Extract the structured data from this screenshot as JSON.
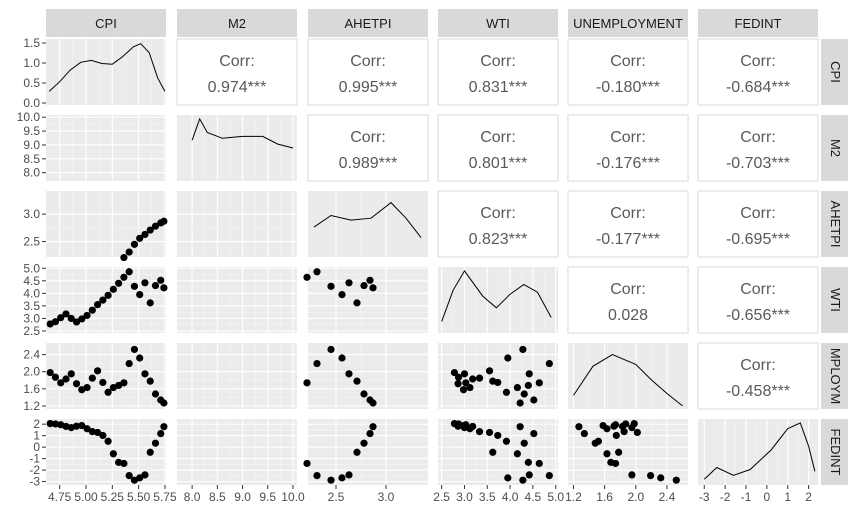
{
  "chart_data": {
    "type": "scatter",
    "variables": [
      "CPI",
      "M2",
      "AHETPI",
      "WTI",
      "UNEMPLOYMENT",
      "FEDINT"
    ],
    "row_strip_labels": [
      "CPI",
      "M2",
      "AHETPI",
      "WTI",
      "MPLOYM",
      "FEDINT"
    ],
    "corr_heading": "Corr:",
    "correlations": [
      {
        "row": 0,
        "col": 1,
        "label": "0.974***"
      },
      {
        "row": 0,
        "col": 2,
        "label": "0.995***"
      },
      {
        "row": 0,
        "col": 3,
        "label": "0.831***"
      },
      {
        "row": 0,
        "col": 4,
        "label": "-0.180***"
      },
      {
        "row": 0,
        "col": 5,
        "label": "-0.684***"
      },
      {
        "row": 1,
        "col": 2,
        "label": "0.989***"
      },
      {
        "row": 1,
        "col": 3,
        "label": "0.801***"
      },
      {
        "row": 1,
        "col": 4,
        "label": "-0.176***"
      },
      {
        "row": 1,
        "col": 5,
        "label": "-0.703***"
      },
      {
        "row": 2,
        "col": 3,
        "label": "0.823***"
      },
      {
        "row": 2,
        "col": 4,
        "label": "-0.177***"
      },
      {
        "row": 2,
        "col": 5,
        "label": "-0.695***"
      },
      {
        "row": 3,
        "col": 4,
        "label": "0.028"
      },
      {
        "row": 3,
        "col": 5,
        "label": "-0.656***"
      },
      {
        "row": 4,
        "col": 5,
        "label": "-0.458***"
      }
    ],
    "x_ticks": [
      [
        "4.75",
        "5.00",
        "5.25",
        "5.50",
        "5.75"
      ],
      [
        "8.0",
        "8.5",
        "9.0",
        "9.5",
        "10.0"
      ],
      [
        "2.5",
        "3.0"
      ],
      [
        "2.5",
        "3.0",
        "3.5",
        "4.0",
        "4.5",
        "5.0"
      ],
      [
        "1.2",
        "1.6",
        "2.0",
        "2.4"
      ],
      [
        "-3",
        "-2",
        "-1",
        "0",
        "1",
        "2"
      ]
    ],
    "y_ticks": [
      [
        "0.0",
        "0.5",
        "1.0",
        "1.5"
      ],
      [
        "8.0",
        "8.5",
        "9.0",
        "9.5",
        "10.0"
      ],
      [
        "2.5",
        "3.0"
      ],
      [
        "2.5",
        "3.0",
        "3.5",
        "4.0",
        "4.5",
        "5.0"
      ],
      [
        "1.2",
        "1.6",
        "2.0",
        "2.4"
      ],
      [
        "-3",
        "-2",
        "-1",
        "0",
        "1",
        "2"
      ]
    ],
    "ranges": [
      [
        4.62,
        5.76
      ],
      [
        7.7,
        10.08
      ],
      [
        2.22,
        3.42
      ],
      [
        2.42,
        5.05
      ],
      [
        1.13,
        2.67
      ],
      [
        -3.3,
        2.45
      ]
    ],
    "density_ylim": [
      -0.05,
      1.65
    ],
    "density": [
      [
        [
          4.65,
          0.3
        ],
        [
          4.75,
          0.55
        ],
        [
          4.85,
          0.85
        ],
        [
          4.95,
          1.05
        ],
        [
          5.05,
          1.1
        ],
        [
          5.15,
          1.02
        ],
        [
          5.25,
          1.0
        ],
        [
          5.35,
          1.2
        ],
        [
          5.45,
          1.45
        ],
        [
          5.52,
          1.53
        ],
        [
          5.6,
          1.3
        ],
        [
          5.68,
          0.65
        ],
        [
          5.75,
          0.3
        ]
      ],
      [
        [
          8.0,
          1.0
        ],
        [
          8.15,
          1.55
        ],
        [
          8.3,
          1.2
        ],
        [
          8.6,
          1.05
        ],
        [
          9.0,
          1.1
        ],
        [
          9.4,
          1.1
        ],
        [
          9.7,
          0.9
        ],
        [
          10.0,
          0.8
        ]
      ],
      [
        [
          2.28,
          0.72
        ],
        [
          2.45,
          1.02
        ],
        [
          2.65,
          0.9
        ],
        [
          2.85,
          0.95
        ],
        [
          3.05,
          1.35
        ],
        [
          3.2,
          0.95
        ],
        [
          3.35,
          0.45
        ]
      ],
      [
        [
          2.5,
          0.25
        ],
        [
          2.75,
          1.05
        ],
        [
          3.0,
          1.55
        ],
        [
          3.4,
          0.9
        ],
        [
          3.7,
          0.6
        ],
        [
          4.0,
          0.95
        ],
        [
          4.3,
          1.2
        ],
        [
          4.6,
          1.0
        ],
        [
          4.9,
          0.35
        ]
      ],
      [
        [
          1.2,
          0.3
        ],
        [
          1.45,
          1.05
        ],
        [
          1.7,
          1.35
        ],
        [
          2.0,
          1.1
        ],
        [
          2.2,
          0.7
        ],
        [
          2.4,
          0.35
        ],
        [
          2.6,
          0.03
        ]
      ],
      [
        [
          -3.0,
          0.1
        ],
        [
          -2.4,
          0.4
        ],
        [
          -1.6,
          0.2
        ],
        [
          -0.8,
          0.35
        ],
        [
          0.2,
          0.85
        ],
        [
          1.0,
          1.4
        ],
        [
          1.6,
          1.55
        ],
        [
          2.0,
          0.95
        ],
        [
          2.3,
          0.3
        ]
      ]
    ],
    "series_points": [
      [
        4.66,
        2.32,
        -0.08,
        2.78,
        1.98,
        2.05
      ],
      [
        4.71,
        2.39,
        0.18,
        2.87,
        1.87,
        2.02
      ],
      [
        4.76,
        2.48,
        0.47,
        3.03,
        1.74,
        1.95
      ],
      [
        4.81,
        2.56,
        0.72,
        3.18,
        1.83,
        1.8
      ],
      [
        4.86,
        2.63,
        0.95,
        3.0,
        1.95,
        1.7
      ],
      [
        4.91,
        2.7,
        1.12,
        2.86,
        1.72,
        1.82
      ],
      [
        4.96,
        2.76,
        1.27,
        2.98,
        1.58,
        1.88
      ],
      [
        5.01,
        2.82,
        1.4,
        3.12,
        1.63,
        1.6
      ],
      [
        5.06,
        2.89,
        1.55,
        3.33,
        1.85,
        1.35
      ],
      [
        5.11,
        2.94,
        1.66,
        3.55,
        2.02,
        1.28
      ],
      [
        5.16,
        3.01,
        1.78,
        3.73,
        1.75,
        1.02
      ],
      [
        5.21,
        3.07,
        1.89,
        3.92,
        1.52,
        0.51
      ],
      [
        5.26,
        3.12,
        2.02,
        4.16,
        1.63,
        -0.58
      ],
      [
        5.31,
        3.18,
        2.09,
        4.4,
        1.68,
        -1.33
      ],
      [
        5.36,
        3.23,
        2.21,
        4.64,
        1.74,
        -1.42
      ],
      [
        5.41,
        3.27,
        2.31,
        4.86,
        2.19,
        -2.48
      ],
      [
        5.46,
        3.31,
        2.45,
        4.28,
        2.52,
        -2.88
      ],
      [
        5.51,
        3.34,
        2.56,
        3.95,
        2.32,
        -2.68
      ],
      [
        5.56,
        3.37,
        2.63,
        4.42,
        1.95,
        -2.42
      ],
      [
        5.61,
        3.39,
        2.71,
        3.62,
        1.78,
        -0.45
      ],
      [
        5.66,
        3.4,
        2.78,
        4.31,
        1.48,
        0.34
      ],
      [
        5.71,
        3.41,
        2.84,
        4.52,
        1.34,
        1.18
      ],
      [
        5.74,
        3.41,
        2.87,
        4.22,
        1.27,
        1.78
      ]
    ]
  }
}
